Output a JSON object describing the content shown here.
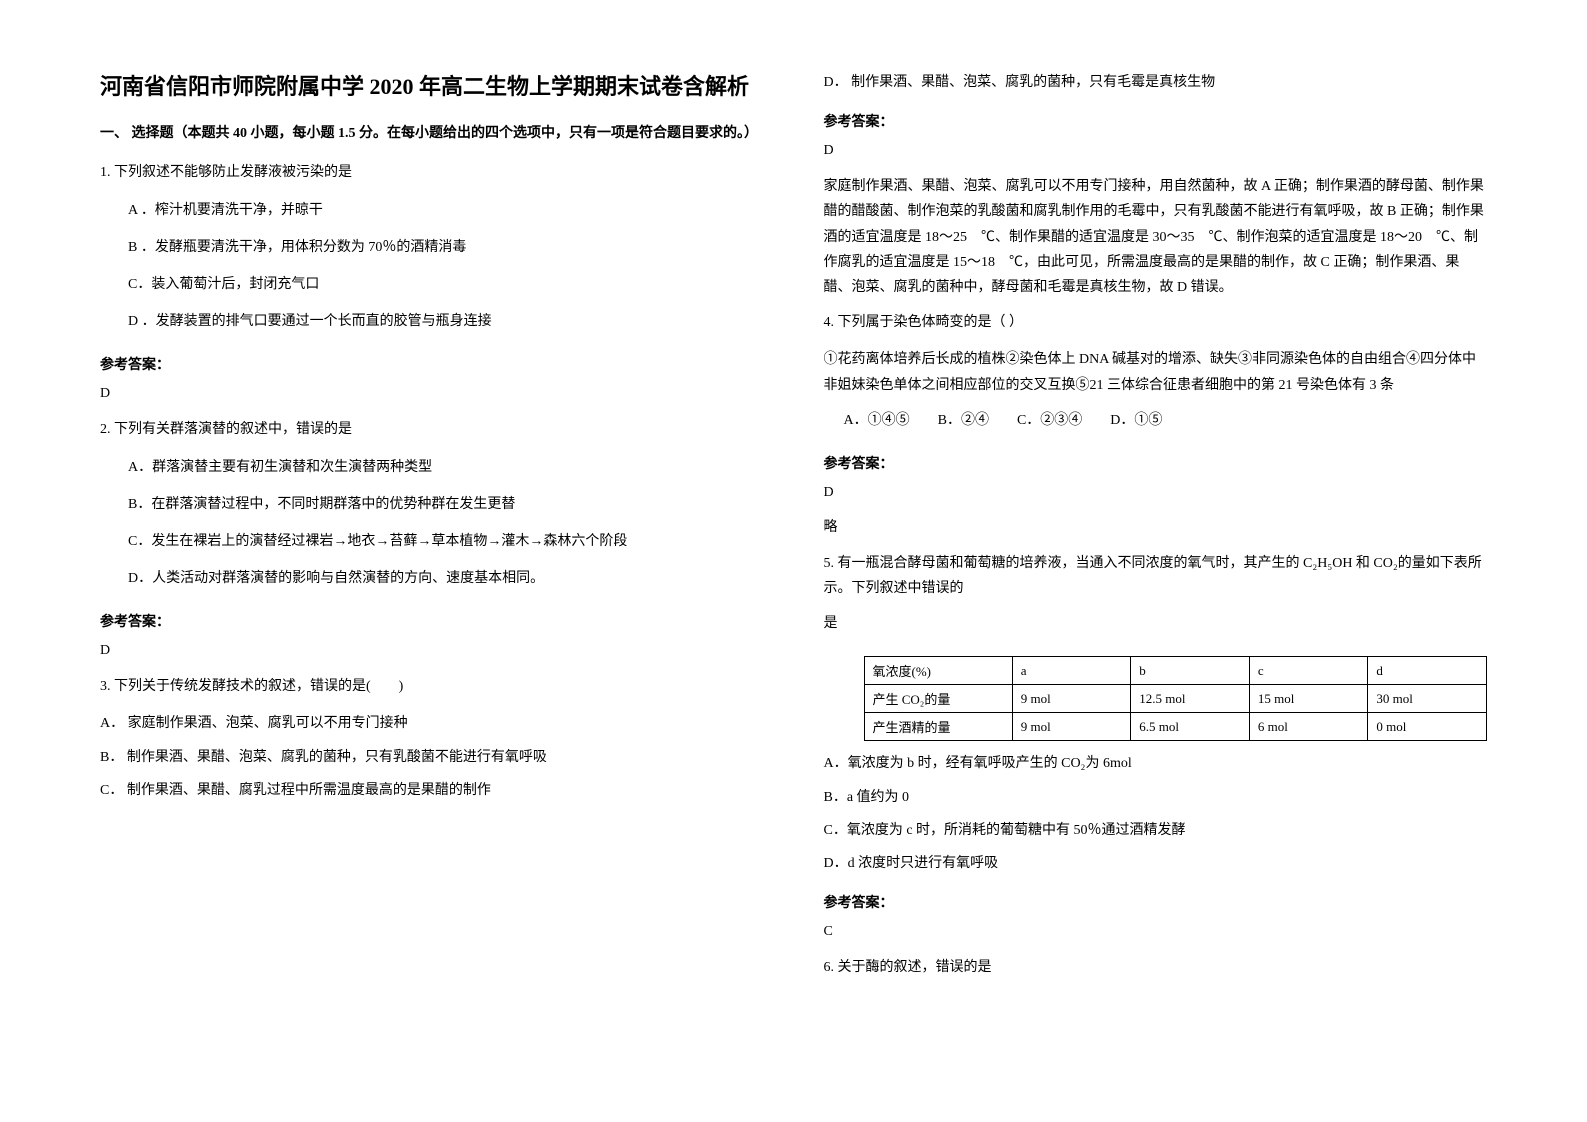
{
  "title": "河南省信阳市师院附属中学 2020 年高二生物上学期期末试卷含解析",
  "section_header": "一、 选择题（本题共 40 小题，每小题 1.5 分。在每小题给出的四个选项中，只有一项是符合题目要求的。）",
  "q1": {
    "text": "1. 下列叙述不能够防止发酵液被污染的是",
    "opts": [
      "A ．榨汁机要清洗干净，并晾干",
      "B ．发酵瓶要清洗干净，用体积分数为 70％的酒精消毒",
      "C．装入葡萄汁后，封闭充气口",
      "D ．发酵装置的排气口要通过一个长而直的胶管与瓶身连接"
    ],
    "answer_label": "参考答案：",
    "answer": "D"
  },
  "q2": {
    "text": "2. 下列有关群落演替的叙述中，错误的是",
    "opts": [
      "A．群落演替主要有初生演替和次生演替两种类型",
      "B．在群落演替过程中，不同时期群落中的优势种群在发生更替",
      "C．发生在裸岩上的演替经过裸岩→地衣→苔藓→草本植物→灌木→森林六个阶段",
      "D．人类活动对群落演替的影响与自然演替的方向、速度基本相同。"
    ],
    "answer_label": "参考答案：",
    "answer": "D"
  },
  "q3": {
    "text": "3. 下列关于传统发酵技术的叙述，错误的是(　　)",
    "opts": [
      "A．  家庭制作果酒、泡菜、腐乳可以不用专门接种",
      "B．  制作果酒、果醋、泡菜、腐乳的菌种，只有乳酸菌不能进行有氧呼吸",
      "C．  制作果酒、果醋、腐乳过程中所需温度最高的是果醋的制作",
      "D．  制作果酒、果醋、泡菜、腐乳的菌种，只有毛霉是真核生物"
    ],
    "answer_label": "参考答案：",
    "answer": "D",
    "explanation": "家庭制作果酒、果醋、泡菜、腐乳可以不用专门接种，用自然菌种，故 A 正确；制作果酒的酵母菌、制作果醋的醋酸菌、制作泡菜的乳酸菌和腐乳制作用的毛霉中，只有乳酸菌不能进行有氧呼吸，故 B 正确；制作果酒的适宜温度是 18～25　℃、制作果醋的适宜温度是 30～35　℃、制作泡菜的适宜温度是 18～20　℃、制作腐乳的适宜温度是 15～18　℃，由此可见，所需温度最高的是果醋的制作，故 C 正确；制作果酒、果醋、泡菜、腐乳的菌种中，酵母菌和毛霉是真核生物，故 D 错误。"
  },
  "q4": {
    "text": "4. 下列属于染色体畸变的是（  ）",
    "detail": "①花药离体培养后长成的植株②染色体上 DNA 碱基对的增添、缺失③非同源染色体的自由组合④四分体中非姐妹染色单体之间相应部位的交叉互换⑤21 三体综合征患者细胞中的第 21 号染色体有 3 条",
    "opts": "A．①④⑤　　B．②④　　C．②③④　　D．①⑤",
    "answer_label": "参考答案：",
    "answer": "D",
    "note": "略"
  },
  "q5": {
    "text": "5. 有一瓶混合酵母菌和葡萄糖的培养液，当通入不同浓度的氧气时，其产生的 C₂H₅OH 和 CO₂的量如下表所示。下列叙述中错误的",
    "text2": "是",
    "table": {
      "headers": [
        "氧浓度(%)",
        "a",
        "b",
        "c",
        "d"
      ],
      "rows": [
        [
          "产生 CO₂的量",
          "9 mol",
          "12.5 mol",
          "15 mol",
          "30 mol"
        ],
        [
          "产生酒精的量",
          "9 mol",
          "6.5 mol",
          "6 mol",
          "0 mol"
        ]
      ]
    },
    "opts": [
      "A．氧浓度为 b 时，经有氧呼吸产生的 CO₂为 6mol",
      "B．a 值约为 0",
      "C．氧浓度为 c 时，所消耗的葡萄糖中有 50％通过酒精发酵",
      "D．d 浓度时只进行有氧呼吸"
    ],
    "answer_label": "参考答案：",
    "answer": "C"
  },
  "q6": {
    "text": "6. 关于酶的叙述，错误的是"
  }
}
